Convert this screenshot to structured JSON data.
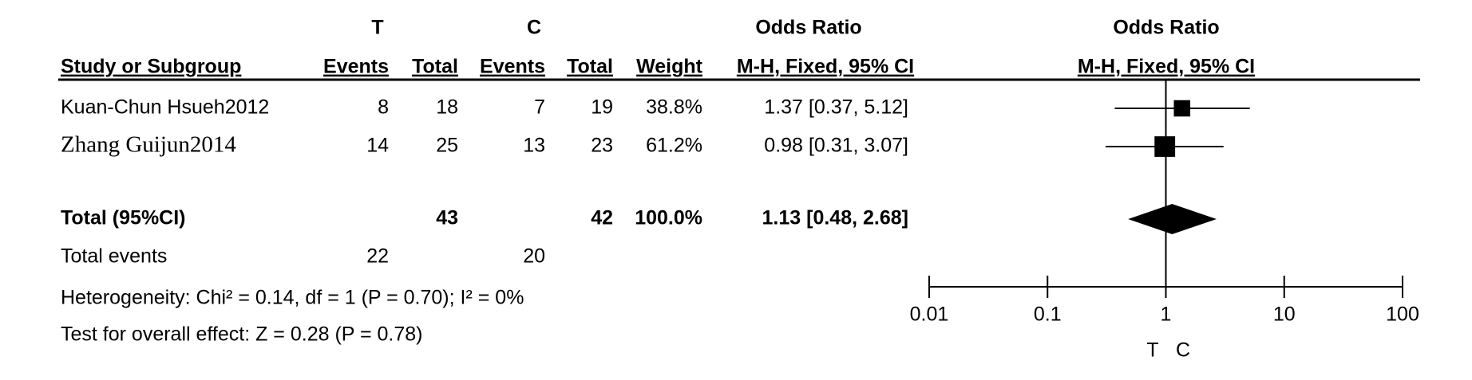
{
  "chart_data": {
    "type": "forest",
    "headers": {
      "group_t": "T",
      "group_c": "C",
      "study": "Study or Subgroup",
      "events_t": "Events",
      "total_t": "Total",
      "events_c": "Events",
      "total_c": "Total",
      "weight": "Weight",
      "or_title": "Odds Ratio",
      "or_method": "M-H, Fixed, 95% CI",
      "plot_title": "Odds Ratio",
      "plot_method": "M-H, Fixed, 95% CI"
    },
    "studies": [
      {
        "name": "Kuan-Chun Hsueh2012",
        "t_events": 8,
        "t_total": 18,
        "c_events": 7,
        "c_total": 19,
        "weight": 38.8,
        "weight_label": "38.8%",
        "or": 1.37,
        "ci_low": 0.37,
        "ci_high": 5.12,
        "or_label": "1.37 [0.37, 5.12]"
      },
      {
        "name": "Zhang Guijun2014",
        "t_events": 14,
        "t_total": 25,
        "c_events": 13,
        "c_total": 23,
        "weight": 61.2,
        "weight_label": "61.2%",
        "or": 0.98,
        "ci_low": 0.31,
        "ci_high": 3.07,
        "or_label": "0.98 [0.31, 3.07]"
      }
    ],
    "total": {
      "name": "Total (95%CI)",
      "t_total": 43,
      "c_total": 42,
      "weight": 100.0,
      "weight_label": "100.0%",
      "or": 1.13,
      "ci_low": 0.48,
      "ci_high": 2.68,
      "or_label": "1.13 [0.48, 2.68]"
    },
    "total_events": {
      "label": "Total events",
      "t": 22,
      "c": 20
    },
    "heterogeneity": "Heterogeneity: Chi² = 0.14, df = 1 (P = 0.70); I² = 0%",
    "overall_effect": "Test for overall effect: Z = 0.28 (P = 0.78)",
    "xlim": [
      0.01,
      100
    ],
    "xticks": [
      0.01,
      0.1,
      1,
      10,
      100
    ],
    "log_scale": true,
    "favours": [
      "T",
      "C"
    ],
    "color": "#000000"
  }
}
